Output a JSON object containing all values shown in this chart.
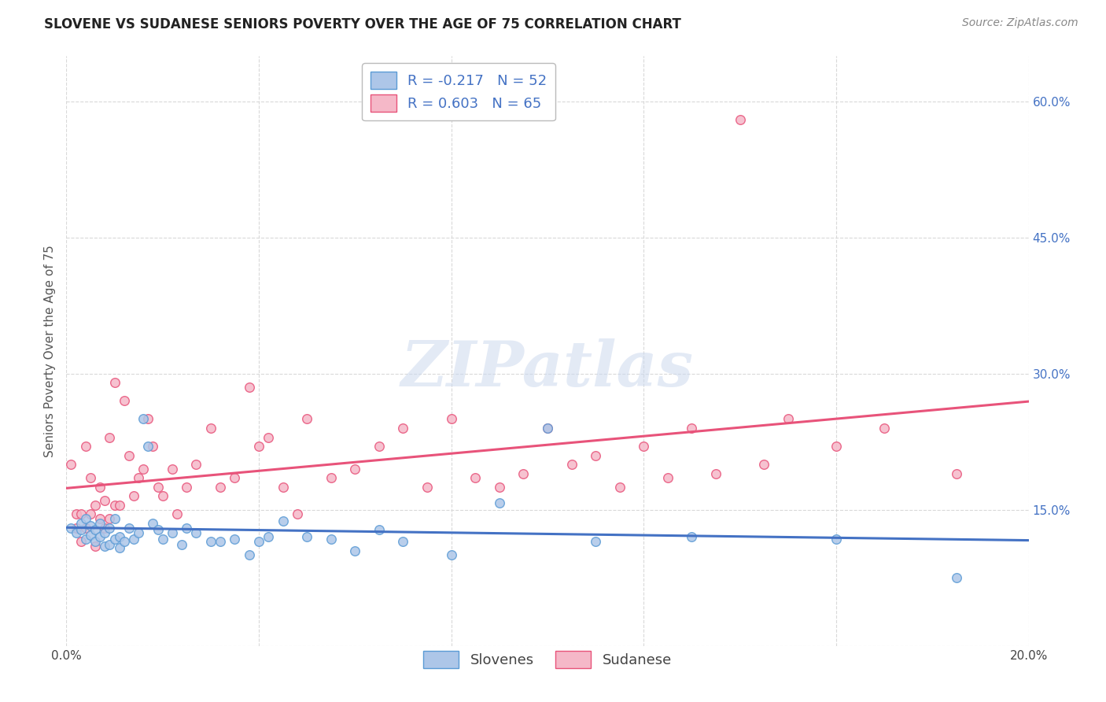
{
  "title": "SLOVENE VS SUDANESE SENIORS POVERTY OVER THE AGE OF 75 CORRELATION CHART",
  "source": "Source: ZipAtlas.com",
  "ylabel": "Seniors Poverty Over the Age of 75",
  "xlim": [
    0.0,
    0.2
  ],
  "ylim": [
    0.0,
    0.65
  ],
  "x_ticks": [
    0.0,
    0.04,
    0.08,
    0.12,
    0.16,
    0.2
  ],
  "x_tick_labels": [
    "0.0%",
    "",
    "",
    "",
    "",
    "20.0%"
  ],
  "y_ticks": [
    0.0,
    0.15,
    0.3,
    0.45,
    0.6
  ],
  "y_tick_labels": [
    "",
    "15.0%",
    "30.0%",
    "45.0%",
    "60.0%"
  ],
  "slovene_color": "#adc6e8",
  "sudanese_color": "#f5b8c8",
  "slovene_edge_color": "#5b9bd5",
  "sudanese_edge_color": "#e8537a",
  "slovene_line_color": "#4472c4",
  "sudanese_line_color": "#e8537a",
  "slovene_R": -0.217,
  "slovene_N": 52,
  "sudanese_R": 0.603,
  "sudanese_N": 65,
  "slovene_scatter_x": [
    0.001,
    0.002,
    0.003,
    0.003,
    0.004,
    0.004,
    0.005,
    0.005,
    0.006,
    0.006,
    0.007,
    0.007,
    0.008,
    0.008,
    0.009,
    0.009,
    0.01,
    0.01,
    0.011,
    0.011,
    0.012,
    0.013,
    0.014,
    0.015,
    0.016,
    0.017,
    0.018,
    0.019,
    0.02,
    0.022,
    0.024,
    0.025,
    0.027,
    0.03,
    0.032,
    0.035,
    0.038,
    0.04,
    0.042,
    0.045,
    0.05,
    0.055,
    0.06,
    0.065,
    0.07,
    0.08,
    0.09,
    0.1,
    0.11,
    0.13,
    0.16,
    0.185
  ],
  "slovene_scatter_y": [
    0.13,
    0.125,
    0.128,
    0.135,
    0.118,
    0.14,
    0.122,
    0.132,
    0.115,
    0.128,
    0.12,
    0.135,
    0.11,
    0.125,
    0.112,
    0.13,
    0.118,
    0.14,
    0.108,
    0.12,
    0.115,
    0.13,
    0.118,
    0.125,
    0.25,
    0.22,
    0.135,
    0.128,
    0.118,
    0.125,
    0.112,
    0.13,
    0.125,
    0.115,
    0.115,
    0.118,
    0.1,
    0.115,
    0.12,
    0.138,
    0.12,
    0.118,
    0.105,
    0.128,
    0.115,
    0.1,
    0.158,
    0.24,
    0.115,
    0.12,
    0.118,
    0.075
  ],
  "sudanese_scatter_x": [
    0.001,
    0.002,
    0.002,
    0.003,
    0.003,
    0.004,
    0.004,
    0.005,
    0.005,
    0.006,
    0.006,
    0.007,
    0.007,
    0.008,
    0.008,
    0.009,
    0.009,
    0.01,
    0.01,
    0.011,
    0.012,
    0.013,
    0.014,
    0.015,
    0.016,
    0.017,
    0.018,
    0.019,
    0.02,
    0.022,
    0.023,
    0.025,
    0.027,
    0.03,
    0.032,
    0.035,
    0.038,
    0.04,
    0.042,
    0.045,
    0.048,
    0.05,
    0.055,
    0.06,
    0.065,
    0.07,
    0.075,
    0.08,
    0.085,
    0.09,
    0.095,
    0.1,
    0.105,
    0.11,
    0.115,
    0.12,
    0.125,
    0.13,
    0.135,
    0.14,
    0.145,
    0.15,
    0.16,
    0.17,
    0.185
  ],
  "sudanese_scatter_y": [
    0.2,
    0.145,
    0.13,
    0.145,
    0.115,
    0.13,
    0.22,
    0.185,
    0.145,
    0.155,
    0.11,
    0.14,
    0.175,
    0.13,
    0.16,
    0.14,
    0.23,
    0.155,
    0.29,
    0.155,
    0.27,
    0.21,
    0.165,
    0.185,
    0.195,
    0.25,
    0.22,
    0.175,
    0.165,
    0.195,
    0.145,
    0.175,
    0.2,
    0.24,
    0.175,
    0.185,
    0.285,
    0.22,
    0.23,
    0.175,
    0.145,
    0.25,
    0.185,
    0.195,
    0.22,
    0.24,
    0.175,
    0.25,
    0.185,
    0.175,
    0.19,
    0.24,
    0.2,
    0.21,
    0.175,
    0.22,
    0.185,
    0.24,
    0.19,
    0.58,
    0.2,
    0.25,
    0.22,
    0.24,
    0.19
  ],
  "watermark_text": "ZIPatlas",
  "background_color": "#ffffff",
  "grid_color": "#d9d9d9",
  "title_fontsize": 12,
  "label_fontsize": 11,
  "tick_fontsize": 11,
  "legend_fontsize": 13,
  "source_fontsize": 10
}
